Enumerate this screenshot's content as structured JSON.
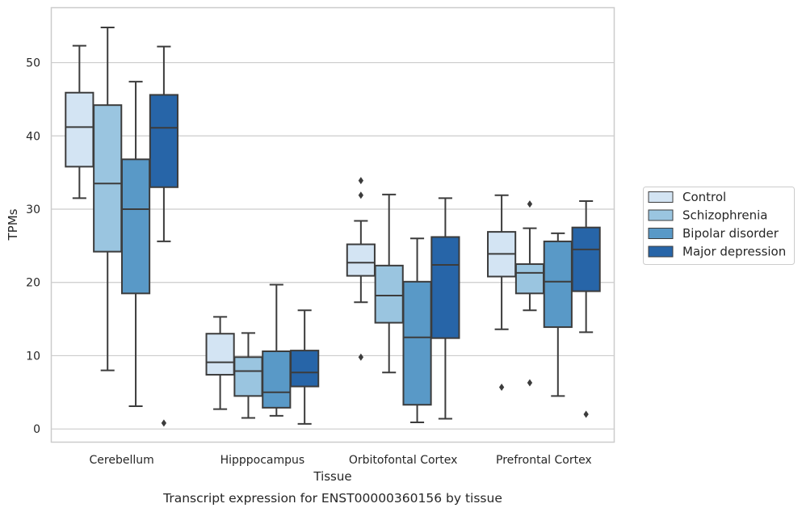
{
  "caption": "Transcript expression for ENST00000360156 by tissue",
  "chart_data": {
    "type": "boxplot",
    "title": "",
    "xlabel": "Tissue",
    "ylabel": "TPMs",
    "ylim": [
      -1.8,
      57.5
    ],
    "yticks": [
      0,
      10,
      20,
      30,
      40,
      50
    ],
    "grid": "horizontal",
    "legend_position": "right",
    "categories": [
      "Cerebellum",
      "Hipppocampus",
      "Orbitofontal Cortex",
      "Prefrontal Cortex"
    ],
    "series": [
      {
        "name": "Control",
        "color": "#d3e4f3",
        "boxes": [
          {
            "whislo": 31.5,
            "q1": 35.8,
            "med": 41.2,
            "q3": 45.9,
            "whishi": 52.3,
            "fliers": []
          },
          {
            "whislo": 2.7,
            "q1": 7.4,
            "med": 9.1,
            "q3": 13.0,
            "whishi": 15.3,
            "fliers": []
          },
          {
            "whislo": 17.3,
            "q1": 20.9,
            "med": 22.7,
            "q3": 25.2,
            "whishi": 28.4,
            "fliers": [
              33.9,
              31.9,
              9.8
            ]
          },
          {
            "whislo": 13.6,
            "q1": 20.8,
            "med": 23.9,
            "q3": 26.9,
            "whishi": 31.9,
            "fliers": [
              5.7
            ]
          }
        ]
      },
      {
        "name": "Schizophrenia",
        "color": "#9ac5e0",
        "boxes": [
          {
            "whislo": 8.0,
            "q1": 24.2,
            "med": 33.5,
            "q3": 44.2,
            "whishi": 54.8,
            "fliers": []
          },
          {
            "whislo": 1.5,
            "q1": 4.5,
            "med": 7.9,
            "q3": 9.8,
            "whishi": 13.1,
            "fliers": []
          },
          {
            "whislo": 7.7,
            "q1": 14.5,
            "med": 18.2,
            "q3": 22.3,
            "whishi": 32.0,
            "fliers": []
          },
          {
            "whislo": 16.2,
            "q1": 18.5,
            "med": 21.3,
            "q3": 22.5,
            "whishi": 27.4,
            "fliers": [
              30.7,
              6.3
            ]
          }
        ]
      },
      {
        "name": "Bipolar disorder",
        "color": "#5999c7",
        "boxes": [
          {
            "whislo": 3.1,
            "q1": 18.5,
            "med": 30.0,
            "q3": 36.8,
            "whishi": 47.4,
            "fliers": []
          },
          {
            "whislo": 1.8,
            "q1": 2.9,
            "med": 5.0,
            "q3": 10.6,
            "whishi": 19.7,
            "fliers": []
          },
          {
            "whislo": 0.9,
            "q1": 3.3,
            "med": 12.5,
            "q3": 20.1,
            "whishi": 26.0,
            "fliers": []
          },
          {
            "whislo": 4.5,
            "q1": 13.9,
            "med": 20.1,
            "q3": 25.6,
            "whishi": 26.7,
            "fliers": []
          }
        ]
      },
      {
        "name": "Major depression",
        "color": "#2765a8",
        "boxes": [
          {
            "whislo": 25.6,
            "q1": 33.0,
            "med": 41.1,
            "q3": 45.6,
            "whishi": 52.2,
            "fliers": [
              0.8
            ]
          },
          {
            "whislo": 0.7,
            "q1": 5.8,
            "med": 7.7,
            "q3": 10.7,
            "whishi": 16.2,
            "fliers": []
          },
          {
            "whislo": 1.4,
            "q1": 12.4,
            "med": 22.4,
            "q3": 26.2,
            "whishi": 31.5,
            "fliers": []
          },
          {
            "whislo": 13.2,
            "q1": 18.8,
            "med": 24.5,
            "q3": 27.5,
            "whishi": 31.1,
            "fliers": [
              2.0
            ]
          }
        ]
      }
    ]
  }
}
